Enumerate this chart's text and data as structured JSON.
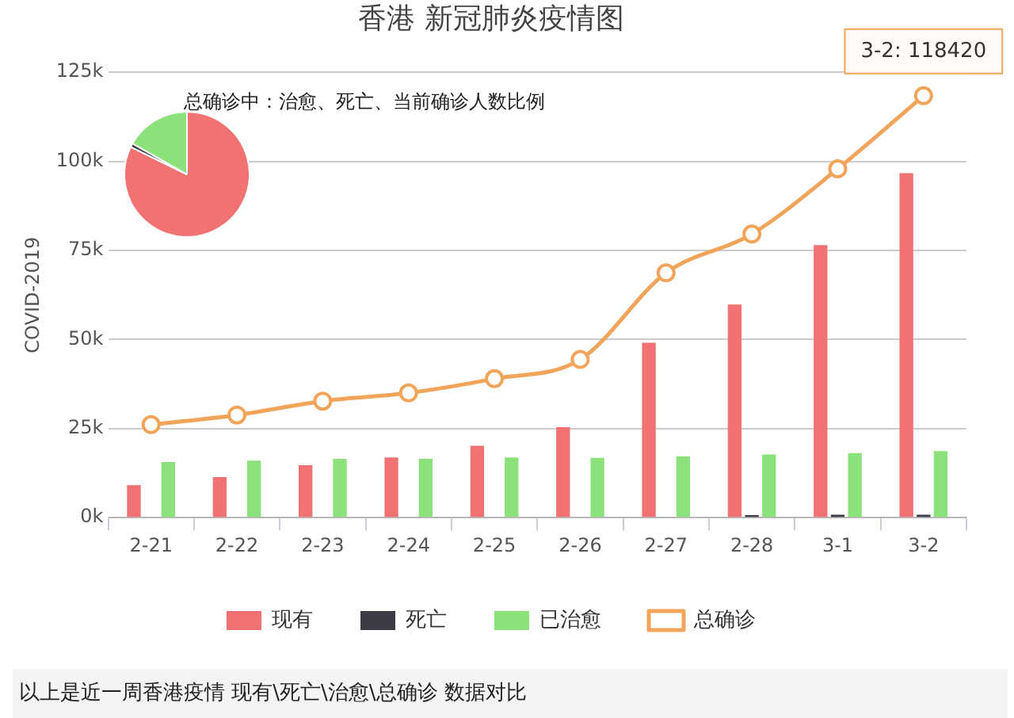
{
  "chart_data": [
    {
      "type": "bar",
      "title": "香港 新冠肺炎疫情图",
      "ylabel": "COVID-2019",
      "categories": [
        "2-21",
        "2-22",
        "2-23",
        "2-24",
        "2-25",
        "2-26",
        "2-27",
        "2-28",
        "3-1",
        "3-2"
      ],
      "series": [
        {
          "name": "现有",
          "type": "bar",
          "color": "#f07272",
          "values": [
            9100,
            11400,
            14700,
            16900,
            20200,
            25400,
            49100,
            59800,
            76500,
            96700
          ]
        },
        {
          "name": "死亡",
          "type": "bar",
          "color": "#3c3c46",
          "values": [
            null,
            null,
            null,
            null,
            null,
            null,
            null,
            700,
            800,
            800
          ]
        },
        {
          "name": "已治愈",
          "type": "bar",
          "color": "#8ce27a",
          "values": [
            15600,
            16000,
            16500,
            16500,
            16900,
            16800,
            17200,
            17700,
            18100,
            18700
          ]
        },
        {
          "name": "总确诊",
          "type": "line",
          "color": "#f0a55a",
          "marker": "circle",
          "values": [
            26100,
            28800,
            32700,
            35000,
            39000,
            44400,
            68700,
            79600,
            97900,
            118420
          ]
        }
      ],
      "ylim": [
        0,
        125000
      ],
      "yticks": [
        {
          "value": 0,
          "label": "0k"
        },
        {
          "value": 25000,
          "label": "25k"
        },
        {
          "value": 50000,
          "label": "50k"
        },
        {
          "value": 75000,
          "label": "75k"
        },
        {
          "value": 100000,
          "label": "100k"
        },
        {
          "value": 125000,
          "label": "125k"
        }
      ],
      "grid": "y",
      "legend": "bottom",
      "annotations": [
        {
          "text": "3-2: 118420",
          "x": "3-2",
          "y": 118420
        },
        "以上是近一周香港疫情 现有\\死亡\\治愈\\总确诊 数据对比"
      ]
    },
    {
      "type": "pie",
      "title": "总确诊中：治愈、死亡、当前确诊人数比例",
      "categories": [
        null,
        null,
        null
      ],
      "values": [
        82.2,
        1,
        16.8
      ],
      "colors": [
        "#f07272",
        "#3c3c46",
        "#8ce27a"
      ]
    }
  ]
}
